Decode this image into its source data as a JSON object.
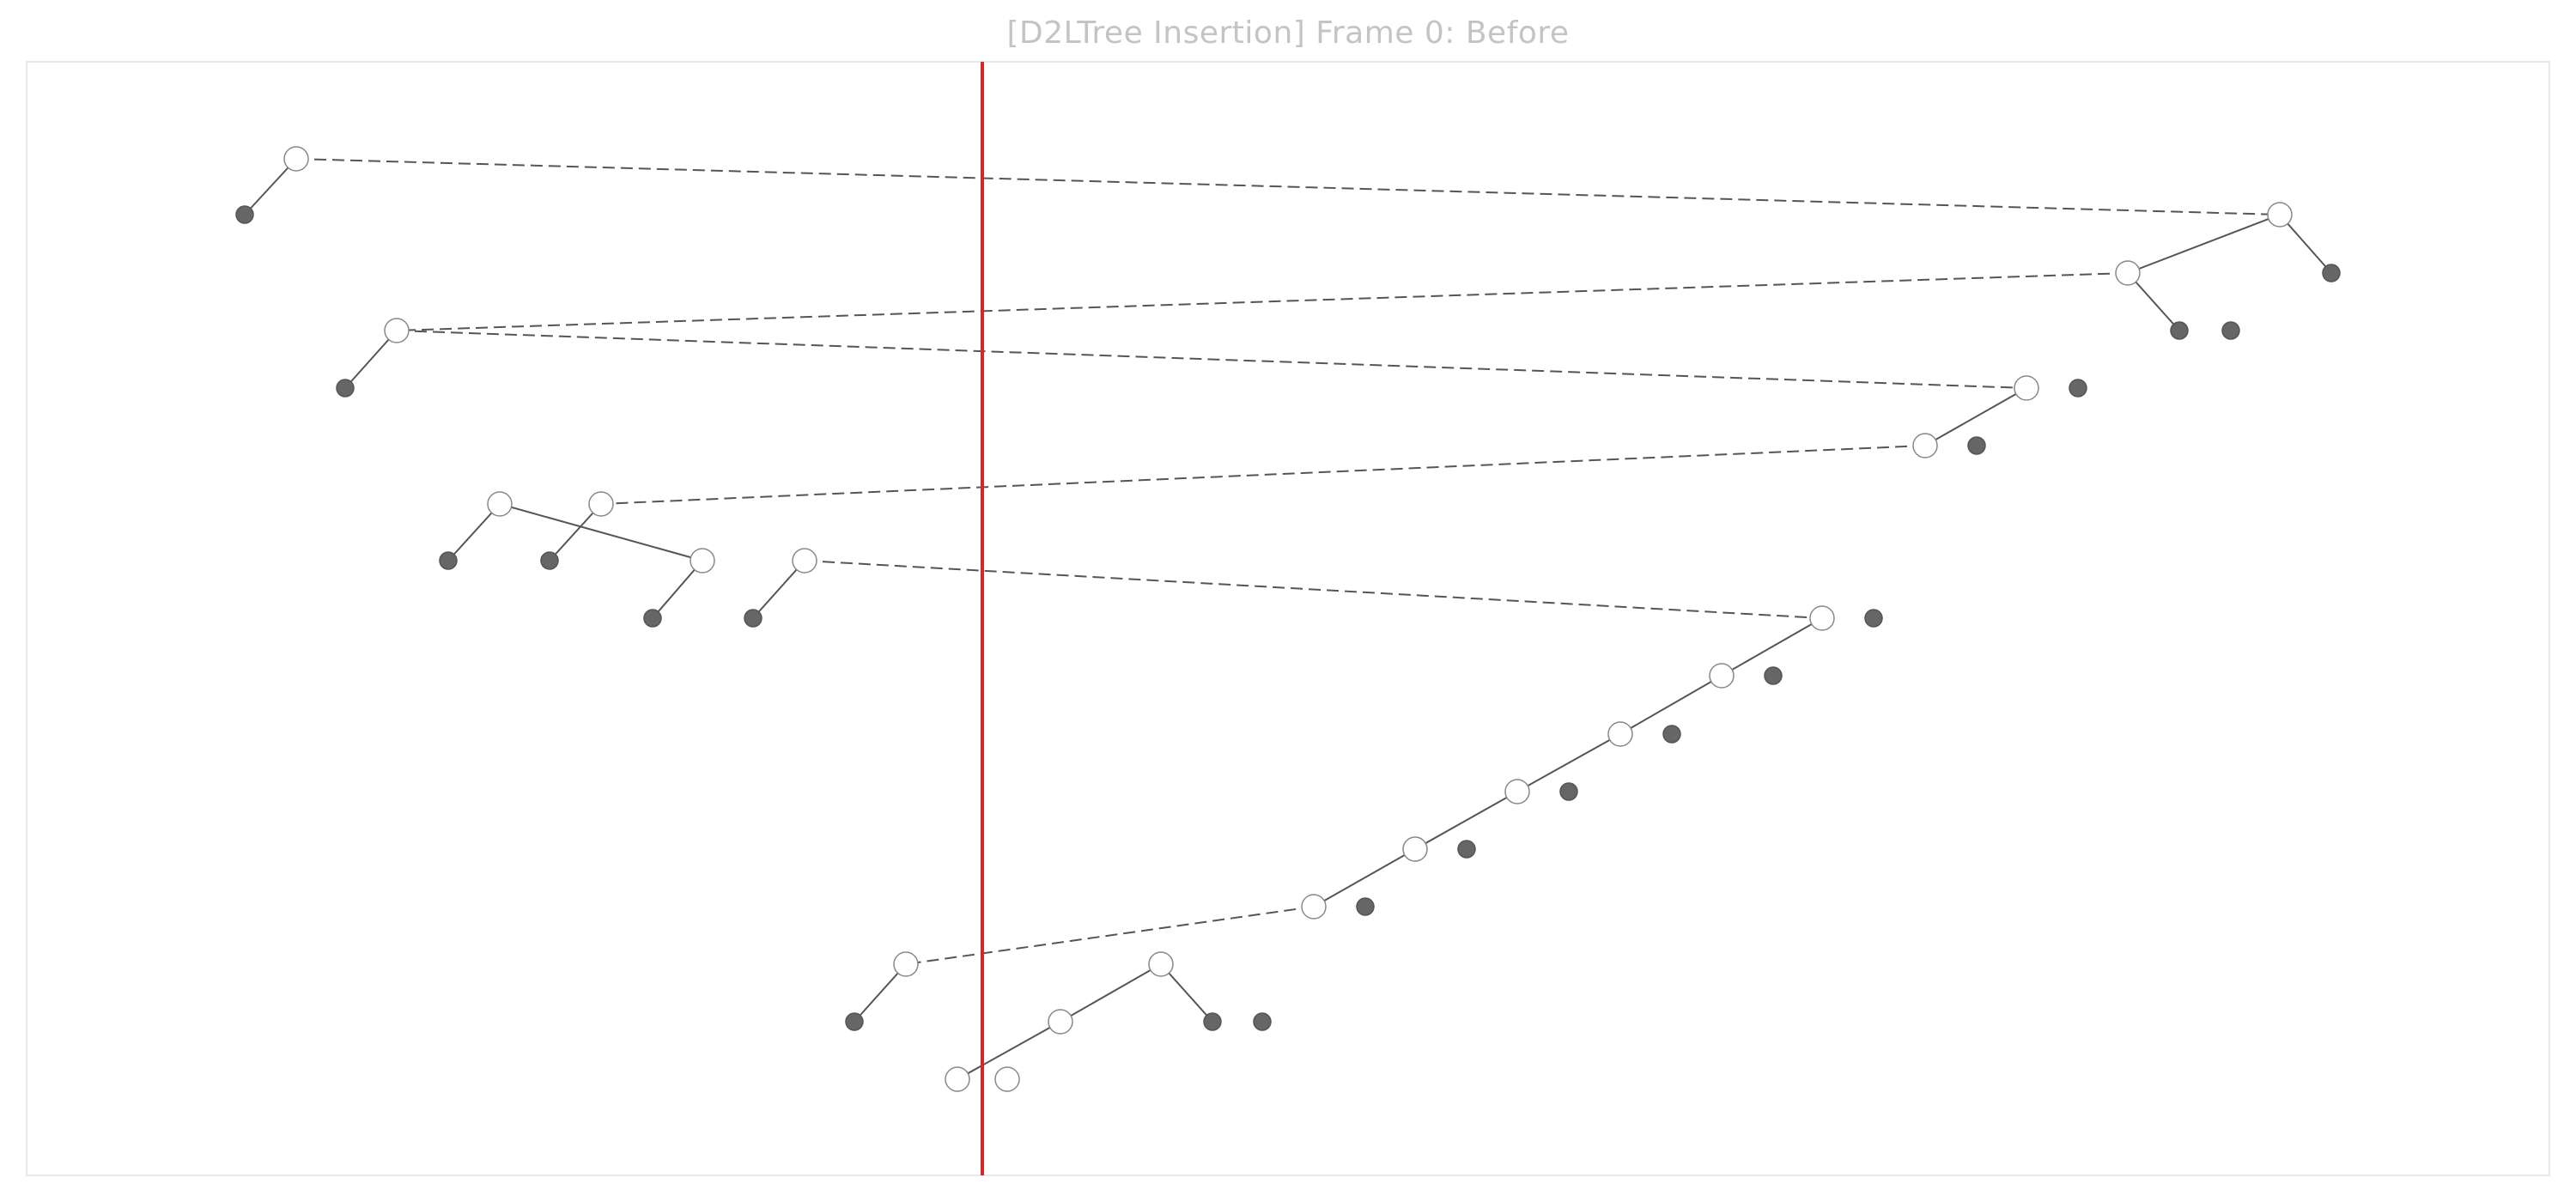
{
  "title": "[D2LTree Insertion] Frame 0: Before",
  "colors": {
    "title": "#c4c4c4",
    "frame": "#e8e8e8",
    "edge": "#555555",
    "internal_node_fill": "#ffffff",
    "internal_node_stroke": "#888888",
    "leaf_fill": "#666666",
    "marker": "#d62728"
  },
  "tree": {
    "nodes": [
      {
        "id": "n1",
        "kind": "internal"
      },
      {
        "id": "l1",
        "kind": "leaf"
      },
      {
        "id": "n2",
        "kind": "internal"
      },
      {
        "id": "l2",
        "kind": "leaf"
      },
      {
        "id": "n3",
        "kind": "internal"
      },
      {
        "id": "l3",
        "kind": "leaf"
      },
      {
        "id": "l4",
        "kind": "leaf"
      },
      {
        "id": "n4",
        "kind": "internal"
      },
      {
        "id": "l5",
        "kind": "leaf"
      },
      {
        "id": "n5",
        "kind": "internal"
      },
      {
        "id": "l6",
        "kind": "leaf"
      },
      {
        "id": "n6",
        "kind": "internal"
      },
      {
        "id": "l7",
        "kind": "leaf"
      },
      {
        "id": "n7",
        "kind": "internal"
      },
      {
        "id": "l8",
        "kind": "leaf"
      },
      {
        "id": "n8",
        "kind": "internal"
      },
      {
        "id": "l9",
        "kind": "leaf"
      },
      {
        "id": "n9",
        "kind": "internal"
      },
      {
        "id": "l10",
        "kind": "leaf"
      },
      {
        "id": "n10",
        "kind": "internal"
      },
      {
        "id": "l11",
        "kind": "leaf"
      },
      {
        "id": "n11",
        "kind": "internal"
      },
      {
        "id": "l12",
        "kind": "leaf"
      },
      {
        "id": "n12",
        "kind": "internal"
      },
      {
        "id": "l13",
        "kind": "leaf"
      },
      {
        "id": "n13",
        "kind": "internal"
      },
      {
        "id": "l14",
        "kind": "leaf"
      },
      {
        "id": "n14",
        "kind": "internal"
      },
      {
        "id": "l15",
        "kind": "leaf"
      },
      {
        "id": "n15",
        "kind": "internal"
      },
      {
        "id": "l16",
        "kind": "leaf"
      },
      {
        "id": "n16",
        "kind": "internal"
      },
      {
        "id": "l17",
        "kind": "leaf"
      },
      {
        "id": "n17",
        "kind": "internal"
      },
      {
        "id": "l18",
        "kind": "leaf"
      },
      {
        "id": "n18",
        "kind": "internal"
      },
      {
        "id": "l19",
        "kind": "leaf"
      },
      {
        "id": "n19",
        "kind": "internal"
      },
      {
        "id": "l20",
        "kind": "leaf"
      },
      {
        "id": "l21",
        "kind": "leaf"
      },
      {
        "id": "n20",
        "kind": "internal"
      },
      {
        "id": "n21",
        "kind": "internal"
      }
    ],
    "edges": [
      {
        "from": "n1",
        "to": "l1",
        "style": "solid"
      },
      {
        "from": "n1",
        "to": "n2",
        "style": "dashed"
      },
      {
        "from": "n2",
        "to": "l2",
        "style": "solid"
      },
      {
        "from": "n2",
        "to": "n3",
        "style": "solid"
      },
      {
        "from": "n3",
        "to": "l3",
        "style": "solid"
      },
      {
        "from": "n3",
        "to": "n4",
        "style": "dashed"
      },
      {
        "from": "n4",
        "to": "l5",
        "style": "solid"
      },
      {
        "from": "n4",
        "to": "n5",
        "style": "dashed"
      },
      {
        "from": "n5",
        "to": "n6",
        "style": "solid"
      },
      {
        "from": "n6",
        "to": "n7",
        "style": "dashed"
      },
      {
        "from": "n7",
        "to": "l8",
        "style": "solid"
      },
      {
        "from": "n8",
        "to": "l9",
        "style": "solid"
      },
      {
        "from": "n8",
        "to": "n10",
        "style": "solid"
      },
      {
        "from": "n10",
        "to": "l11",
        "style": "solid"
      },
      {
        "from": "n11",
        "to": "l12",
        "style": "solid"
      },
      {
        "from": "n11",
        "to": "n12",
        "style": "dashed"
      },
      {
        "from": "n12",
        "to": "n13",
        "style": "solid"
      },
      {
        "from": "n13",
        "to": "n14",
        "style": "solid"
      },
      {
        "from": "n14",
        "to": "n15",
        "style": "solid"
      },
      {
        "from": "n15",
        "to": "n16",
        "style": "solid"
      },
      {
        "from": "n16",
        "to": "n17",
        "style": "solid"
      },
      {
        "from": "n17",
        "to": "n18",
        "style": "dashed"
      },
      {
        "from": "n18",
        "to": "l19",
        "style": "solid"
      },
      {
        "from": "n19",
        "to": "n20",
        "style": "solid"
      },
      {
        "from": "n19",
        "to": "l20",
        "style": "solid"
      },
      {
        "from": "n20",
        "to": "n21",
        "style": "solid"
      }
    ]
  }
}
